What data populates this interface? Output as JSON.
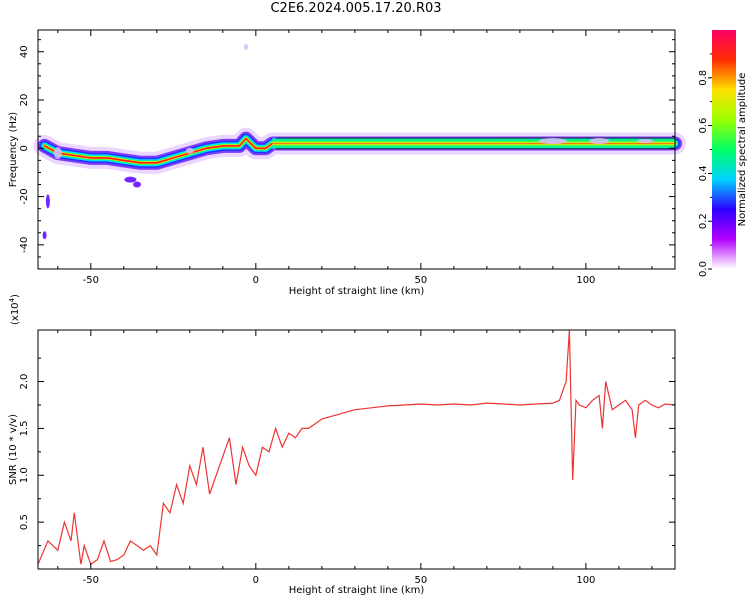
{
  "title": "C2E6.2024.005.17.20.R03",
  "chart_data": [
    {
      "type": "heatmap",
      "xlabel": "Height of straight line (km)",
      "ylabel": "Frequency (Hz)",
      "xlim": [
        -66,
        127
      ],
      "ylim": [
        -50,
        49
      ],
      "xticks": [
        -50,
        0,
        50,
        100
      ],
      "yticks": [
        -40,
        -20,
        0,
        20,
        40
      ],
      "colorbar": {
        "label": "Normalized spectral amplitude",
        "range": [
          0,
          1
        ],
        "ticks": [
          "0.0",
          "0.2",
          "0.4",
          "0.6",
          "0.8"
        ],
        "colors": [
          "#ffffff",
          "#b400ff",
          "#2d00ff",
          "#00d4ff",
          "#00ff66",
          "#9cff00",
          "#ffe000",
          "#ff2d00",
          "#ff0066"
        ]
      },
      "ridge": {
        "x": [
          -64,
          -60,
          -55,
          -50,
          -45,
          -40,
          -35,
          -30,
          -25,
          -20,
          -15,
          -10,
          -5,
          -3,
          0,
          3,
          5,
          10,
          20,
          40,
          60,
          80,
          90,
          100,
          110,
          120,
          127
        ],
        "freq": [
          1,
          -2,
          -3,
          -4,
          -4,
          -5,
          -6,
          -6,
          -4,
          -2,
          0,
          1,
          1,
          4,
          0,
          0,
          2,
          2,
          2,
          2,
          2,
          2,
          2,
          2,
          2,
          2,
          2
        ]
      }
    },
    {
      "type": "line",
      "xlabel": "Height of straight line (km)",
      "ylabel": "SNR (10 * v/v)",
      "y_multiplier": "(x10",
      "y_multiplier_exp": "4",
      "y_multiplier_close": ")",
      "xlim": [
        -66,
        127
      ],
      "ylim": [
        0,
        2.55
      ],
      "xticks": [
        -50,
        0,
        50,
        100
      ],
      "yticks": [
        "0.5",
        "1.0",
        "1.5",
        "2.0"
      ],
      "series": [
        {
          "color": "#ee3333",
          "x": [
            -66,
            -63,
            -60,
            -58,
            -56,
            -55,
            -53,
            -52,
            -50,
            -48,
            -46,
            -44,
            -42,
            -40,
            -38,
            -36,
            -34,
            -32,
            -30,
            -28,
            -26,
            -24,
            -22,
            -20,
            -18,
            -16,
            -14,
            -12,
            -10,
            -8,
            -6,
            -4,
            -2,
            0,
            2,
            4,
            6,
            8,
            10,
            12,
            14,
            16,
            18,
            20,
            25,
            30,
            35,
            40,
            45,
            50,
            55,
            60,
            65,
            70,
            75,
            80,
            85,
            90,
            92,
            94,
            95,
            96,
            97,
            98,
            100,
            102,
            104,
            105,
            106,
            108,
            110,
            112,
            114,
            115,
            116,
            118,
            120,
            122,
            124,
            127
          ],
          "y": [
            0.05,
            0.3,
            0.2,
            0.5,
            0.3,
            0.6,
            0.05,
            0.25,
            0.05,
            0.1,
            0.3,
            0.08,
            0.1,
            0.15,
            0.3,
            0.25,
            0.2,
            0.25,
            0.15,
            0.7,
            0.6,
            0.9,
            0.7,
            1.1,
            0.9,
            1.3,
            0.8,
            1.0,
            1.2,
            1.4,
            0.9,
            1.3,
            1.1,
            1.0,
            1.3,
            1.25,
            1.5,
            1.3,
            1.45,
            1.4,
            1.5,
            1.5,
            1.55,
            1.6,
            1.65,
            1.7,
            1.72,
            1.74,
            1.75,
            1.76,
            1.75,
            1.76,
            1.75,
            1.77,
            1.76,
            1.75,
            1.76,
            1.77,
            1.8,
            2.0,
            2.55,
            0.95,
            1.8,
            1.75,
            1.72,
            1.8,
            1.85,
            1.5,
            2.0,
            1.7,
            1.75,
            1.8,
            1.7,
            1.4,
            1.75,
            1.8,
            1.75,
            1.72,
            1.76,
            1.75
          ]
        }
      ]
    }
  ]
}
